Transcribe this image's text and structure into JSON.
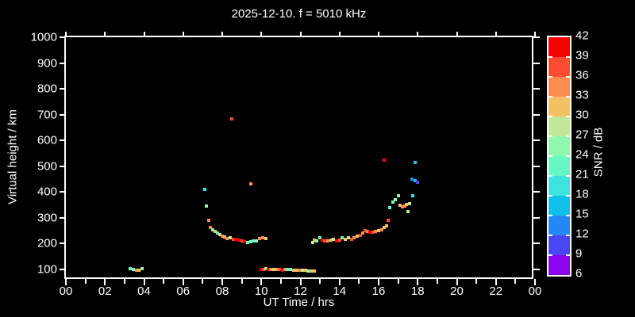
{
  "chart_data": {
    "type": "scatter",
    "title": "2025-12-10. f = 5010 kHz",
    "xlabel": "UT Time / hrs",
    "ylabel": "Virtual height / km",
    "background_color": "#000000",
    "axis_color": "#ffffff",
    "grid": false,
    "xlim_hours": [
      0,
      24
    ],
    "x_tick_hours": [
      0,
      2,
      4,
      6,
      8,
      10,
      12,
      14,
      16,
      18,
      20,
      22,
      24
    ],
    "x_tick_labels": [
      "00",
      "02",
      "04",
      "06",
      "08",
      "10",
      "12",
      "14",
      "16",
      "18",
      "20",
      "22",
      "00"
    ],
    "x_minor_tick_hours": [
      1,
      3,
      5,
      7,
      9,
      11,
      13,
      15,
      17,
      19,
      21,
      23
    ],
    "y_ticks_km": [
      100,
      200,
      300,
      400,
      500,
      600,
      700,
      800,
      900,
      1000
    ],
    "ylim_labeled_km": [
      100,
      1000
    ],
    "colorbar": {
      "label": "SNR / dB",
      "tick_values": [
        42,
        39,
        36,
        33,
        30,
        27,
        24,
        21,
        18,
        15,
        12,
        9,
        6
      ],
      "min": 6,
      "max": 42,
      "step": 3,
      "colors_low_to_high": [
        "#8a05eb",
        "#4a47f2",
        "#2489f5",
        "#0fc0e8",
        "#3de3dc",
        "#66f7c2",
        "#90f8ac",
        "#bfe898",
        "#f2c163",
        "#ff8c50",
        "#ff4d33",
        "#fa0000"
      ]
    },
    "points_time_height_snr": [
      [
        3.3,
        103,
        22
      ],
      [
        3.45,
        100,
        25
      ],
      [
        3.6,
        97,
        34
      ],
      [
        3.72,
        98,
        31
      ],
      [
        3.88,
        102,
        25
      ],
      [
        7.1,
        410,
        19
      ],
      [
        7.2,
        345,
        25
      ],
      [
        7.3,
        290,
        34
      ],
      [
        7.38,
        262,
        34
      ],
      [
        7.5,
        253,
        25
      ],
      [
        7.62,
        247,
        31
      ],
      [
        7.75,
        240,
        22
      ],
      [
        7.88,
        234,
        28
      ],
      [
        8.0,
        228,
        34
      ],
      [
        8.12,
        225,
        31
      ],
      [
        8.25,
        220,
        34
      ],
      [
        8.4,
        222,
        28
      ],
      [
        8.55,
        218,
        37
      ],
      [
        8.7,
        216,
        40
      ],
      [
        8.85,
        214,
        40
      ],
      [
        9.0,
        212,
        37
      ],
      [
        9.15,
        209,
        40
      ],
      [
        9.3,
        205,
        22
      ],
      [
        9.45,
        208,
        25
      ],
      [
        9.6,
        212,
        22
      ],
      [
        9.75,
        210,
        25
      ],
      [
        9.92,
        220,
        34
      ],
      [
        10.08,
        224,
        34
      ],
      [
        10.22,
        221,
        31
      ],
      [
        8.5,
        684,
        37
      ],
      [
        9.45,
        432,
        34
      ],
      [
        10.0,
        101,
        40
      ],
      [
        10.12,
        100,
        37
      ],
      [
        10.24,
        102,
        25
      ],
      [
        10.36,
        100,
        40
      ],
      [
        10.48,
        99,
        34
      ],
      [
        10.6,
        100,
        31
      ],
      [
        10.72,
        101,
        31
      ],
      [
        10.85,
        99,
        34
      ],
      [
        10.97,
        100,
        37
      ],
      [
        11.1,
        98,
        40
      ],
      [
        11.22,
        99,
        34
      ],
      [
        11.35,
        100,
        22
      ],
      [
        11.5,
        99,
        25
      ],
      [
        11.65,
        98,
        31
      ],
      [
        11.8,
        97,
        31
      ],
      [
        11.95,
        96,
        34
      ],
      [
        12.1,
        97,
        28
      ],
      [
        12.25,
        96,
        31
      ],
      [
        12.4,
        95,
        25
      ],
      [
        12.55,
        95,
        31
      ],
      [
        12.7,
        94,
        31
      ],
      [
        12.62,
        205,
        28
      ],
      [
        12.72,
        213,
        31
      ],
      [
        12.85,
        210,
        25
      ],
      [
        13.0,
        222,
        22
      ],
      [
        13.12,
        215,
        40
      ],
      [
        13.25,
        212,
        37
      ],
      [
        13.4,
        210,
        34
      ],
      [
        13.55,
        213,
        31
      ],
      [
        13.7,
        218,
        28
      ],
      [
        13.85,
        212,
        40
      ],
      [
        14.0,
        215,
        37
      ],
      [
        14.15,
        222,
        22
      ],
      [
        14.3,
        218,
        31
      ],
      [
        14.45,
        222,
        28
      ],
      [
        14.6,
        218,
        37
      ],
      [
        14.75,
        222,
        34
      ],
      [
        14.9,
        228,
        31
      ],
      [
        15.05,
        232,
        37
      ],
      [
        15.18,
        240,
        34
      ],
      [
        15.3,
        252,
        37
      ],
      [
        15.42,
        248,
        34
      ],
      [
        15.55,
        245,
        40
      ],
      [
        15.7,
        243,
        37
      ],
      [
        15.85,
        247,
        34
      ],
      [
        16.0,
        250,
        31
      ],
      [
        16.15,
        255,
        34
      ],
      [
        16.3,
        262,
        31
      ],
      [
        16.42,
        268,
        31
      ],
      [
        16.5,
        290,
        37
      ],
      [
        16.3,
        525,
        40
      ],
      [
        16.55,
        340,
        22
      ],
      [
        16.72,
        360,
        25
      ],
      [
        16.85,
        370,
        25
      ],
      [
        17.0,
        385,
        25
      ],
      [
        17.1,
        350,
        31
      ],
      [
        17.22,
        342,
        34
      ],
      [
        17.32,
        345,
        34
      ],
      [
        17.42,
        352,
        31
      ],
      [
        17.5,
        325,
        28
      ],
      [
        17.58,
        355,
        28
      ],
      [
        17.75,
        385,
        19
      ],
      [
        17.7,
        450,
        13
      ],
      [
        17.85,
        445,
        16
      ],
      [
        18.0,
        438,
        10
      ],
      [
        17.85,
        516,
        17
      ]
    ]
  }
}
